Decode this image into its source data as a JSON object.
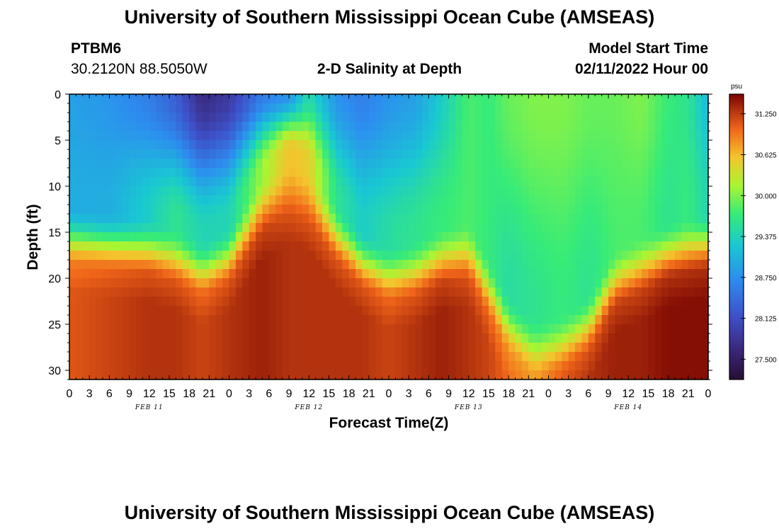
{
  "header": {
    "title": "University of Southern Mississippi Ocean Cube (AMSEAS)",
    "station_id": "PTBM6",
    "coords": "30.2120N  88.5050W",
    "plot_title": "2-D Salinity at Depth",
    "model_start_label": "Model Start Time",
    "model_start_value": "02/11/2022 Hour 00"
  },
  "footer": {
    "title": "University of Southern Mississippi Ocean Cube (AMSEAS)"
  },
  "chart_data": {
    "type": "heatmap",
    "title": "2-D Salinity at Depth",
    "xlabel": "Forecast Time(Z)",
    "ylabel": "Depth (ft)",
    "x_hours_range": [
      0,
      96
    ],
    "ylim": [
      0,
      31
    ],
    "y_ticks": [
      0,
      5,
      10,
      15,
      20,
      25,
      30
    ],
    "x_tick_labels": [
      "0",
      "3",
      "6",
      "9",
      "12",
      "15",
      "18",
      "21",
      "0",
      "3",
      "6",
      "9",
      "12",
      "15",
      "18",
      "21",
      "0",
      "3",
      "6",
      "9",
      "12",
      "15",
      "18",
      "21",
      "0",
      "3",
      "6",
      "9",
      "12",
      "15",
      "18",
      "21",
      "0"
    ],
    "date_labels": [
      {
        "label": "FEB 11",
        "hour": 12
      },
      {
        "label": "FEB 12",
        "hour": 36
      },
      {
        "label": "FEB 13",
        "hour": 60
      },
      {
        "label": "FEB 14",
        "hour": 84
      }
    ],
    "colorbar": {
      "unit": "psu",
      "min": 27.19,
      "max": 31.55,
      "tick_labels": [
        "31.250",
        "30.625",
        "30.000",
        "29.375",
        "28.750",
        "28.125",
        "27.500"
      ],
      "tick_values": [
        31.25,
        30.625,
        30.0,
        29.375,
        28.75,
        28.125,
        27.5
      ]
    },
    "profile_hours": [
      0,
      6,
      12,
      16,
      20,
      24,
      29,
      33,
      36,
      40,
      44,
      48,
      52,
      56,
      60,
      63,
      66,
      70,
      74,
      78,
      82,
      86,
      90,
      93,
      96
    ],
    "surface_salinity": [
      28.9,
      28.8,
      28.6,
      28.3,
      27.7,
      27.9,
      28.6,
      28.8,
      29.5,
      28.8,
      28.6,
      28.8,
      28.9,
      29.3,
      29.8,
      29.7,
      29.9,
      30.0,
      30.0,
      29.9,
      29.9,
      30.0,
      29.7,
      29.6,
      29.1
    ],
    "mid_salinity": [
      29.0,
      29.0,
      29.3,
      29.6,
      29.4,
      29.4,
      30.1,
      30.6,
      30.5,
      29.6,
      29.3,
      29.5,
      29.6,
      29.7,
      29.8,
      29.7,
      29.5,
      29.6,
      29.7,
      29.6,
      29.8,
      29.8,
      29.6,
      29.7,
      29.4
    ],
    "transition_depth_ft": [
      15.5,
      16.0,
      16.5,
      17.5,
      19.0,
      17.5,
      12.0,
      10.0,
      11.0,
      15.0,
      18.0,
      19.5,
      19.0,
      17.5,
      17.0,
      21.0,
      25.0,
      27.5,
      27.0,
      25.0,
      20.0,
      18.5,
      17.0,
      16.5,
      16.0
    ],
    "bottom_salinity": [
      31.1,
      31.2,
      31.3,
      31.3,
      31.2,
      31.3,
      31.4,
      31.3,
      31.3,
      31.3,
      31.3,
      31.2,
      31.3,
      31.4,
      31.3,
      31.2,
      31.0,
      30.9,
      31.2,
      31.3,
      31.4,
      31.4,
      31.5,
      31.5,
      31.5
    ]
  }
}
